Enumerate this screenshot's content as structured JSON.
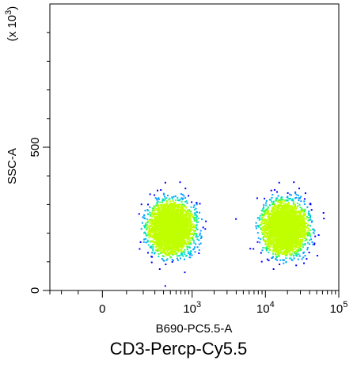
{
  "caption": "CD3-Percp-Cy5.5",
  "chart_data": {
    "type": "scatter",
    "xlabel": "B690-PC5.5-A",
    "ylabel": "SSC-A",
    "y_multiplier_label": "(x 10",
    "y_multiplier_exponent": "3",
    "y_multiplier_close": ")",
    "x_scale": "biexponential",
    "xlim": [
      -300,
      100000
    ],
    "ylim": [
      0,
      1000
    ],
    "y_ticks": [
      {
        "value": 0,
        "label": "0"
      },
      {
        "value": 500,
        "label": "500"
      }
    ],
    "x_ticks": [
      {
        "value": 0,
        "label": "0",
        "exp": ""
      },
      {
        "value": 1000,
        "label": "10",
        "exp": "3"
      },
      {
        "value": 10000,
        "label": "10",
        "exp": "4"
      },
      {
        "value": 100000,
        "label": "10",
        "exp": "5"
      }
    ],
    "populations": [
      {
        "name": "",
        "x_center": 500,
        "y_center": 220,
        "approx_events": 3500
      },
      {
        "name": "",
        "x_center": 18000,
        "y_center": 220,
        "approx_events": 3500
      }
    ],
    "colormap": [
      "#0000ff",
      "#00a0ff",
      "#00e0c0",
      "#40ff40",
      "#c0ff00"
    ],
    "grid": false
  }
}
